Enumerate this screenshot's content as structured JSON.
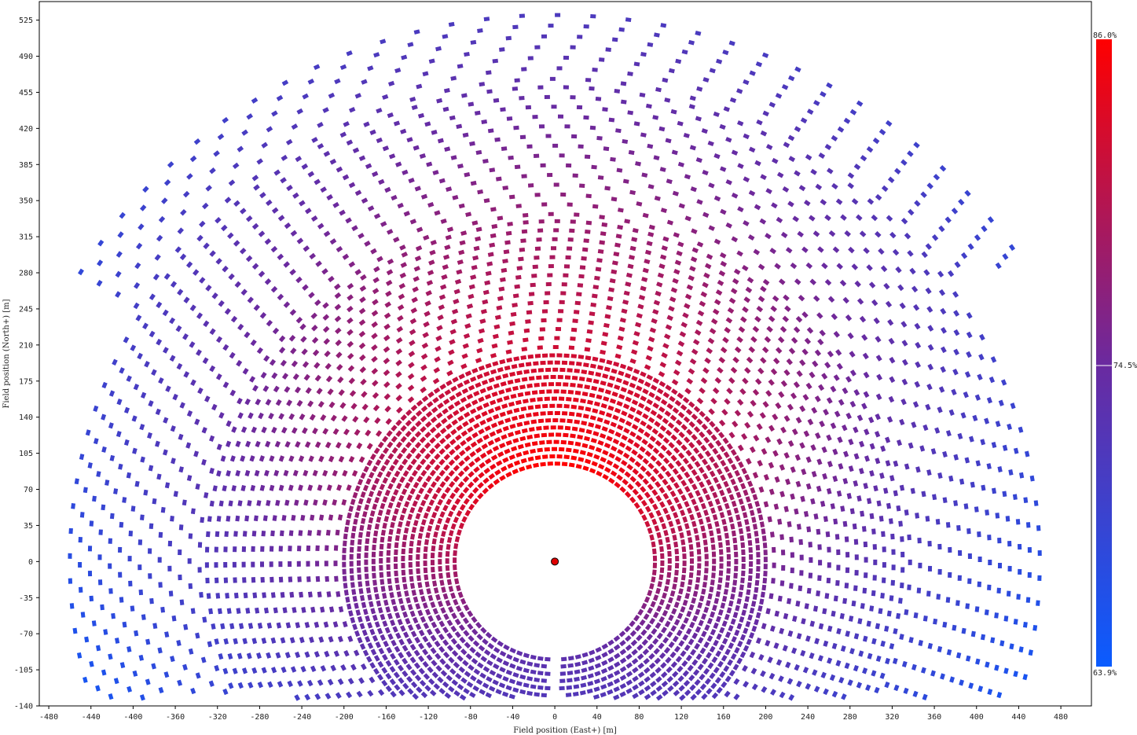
{
  "chart_data": {
    "type": "scatter",
    "title": "",
    "xlabel": "Field position (East+) [m]",
    "ylabel": "Field position (North+) [m]",
    "xlim": [
      -489,
      509
    ],
    "ylim": [
      -140,
      543
    ],
    "xticks": [
      -480,
      -440,
      -400,
      -360,
      -320,
      -280,
      -240,
      -200,
      -160,
      -120,
      -80,
      -40,
      0,
      40,
      80,
      120,
      160,
      200,
      240,
      280,
      320,
      360,
      400,
      440,
      480
    ],
    "yticks": [
      -140,
      -105,
      -70,
      -35,
      0,
      35,
      70,
      105,
      140,
      175,
      210,
      245,
      280,
      315,
      350,
      385,
      420,
      455,
      490,
      525
    ],
    "receiver": {
      "x": 0,
      "y": 0,
      "color": "#e00000"
    },
    "heliostat_field": {
      "description_of_layout": "radially staggered heliostats arranged in concentric arcs around the tower, zones separated by gaps",
      "zones": [
        {
          "r_inner": 95,
          "r_outer": 200,
          "rows": 16,
          "azimuth_range_deg": [
            -180,
            180
          ],
          "south_gap_deg": 3
        },
        {
          "r_inner": 208,
          "r_outer": 330,
          "rows": 15,
          "azimuth_range_deg": [
            -140,
            140
          ]
        },
        {
          "r_inner": 337,
          "r_outer": 460,
          "rows": 14,
          "azimuth_range_deg": [
            -112,
            112
          ]
        },
        {
          "r_inner": 468,
          "r_outer": 530,
          "rows": 7,
          "azimuth_range_deg": [
            -58,
            56
          ]
        }
      ],
      "grid": "none",
      "legend": "none"
    },
    "colorbar": {
      "min_label": "63.9%",
      "mid_label": "74.5%",
      "max_label": "86.0%",
      "min_value": 63.9,
      "mid_value": 74.5,
      "max_value": 86.0,
      "min_color": "#0a5cff",
      "mid_color": "#6a2aa0",
      "max_color": "#ff0000",
      "placement": "right"
    }
  }
}
